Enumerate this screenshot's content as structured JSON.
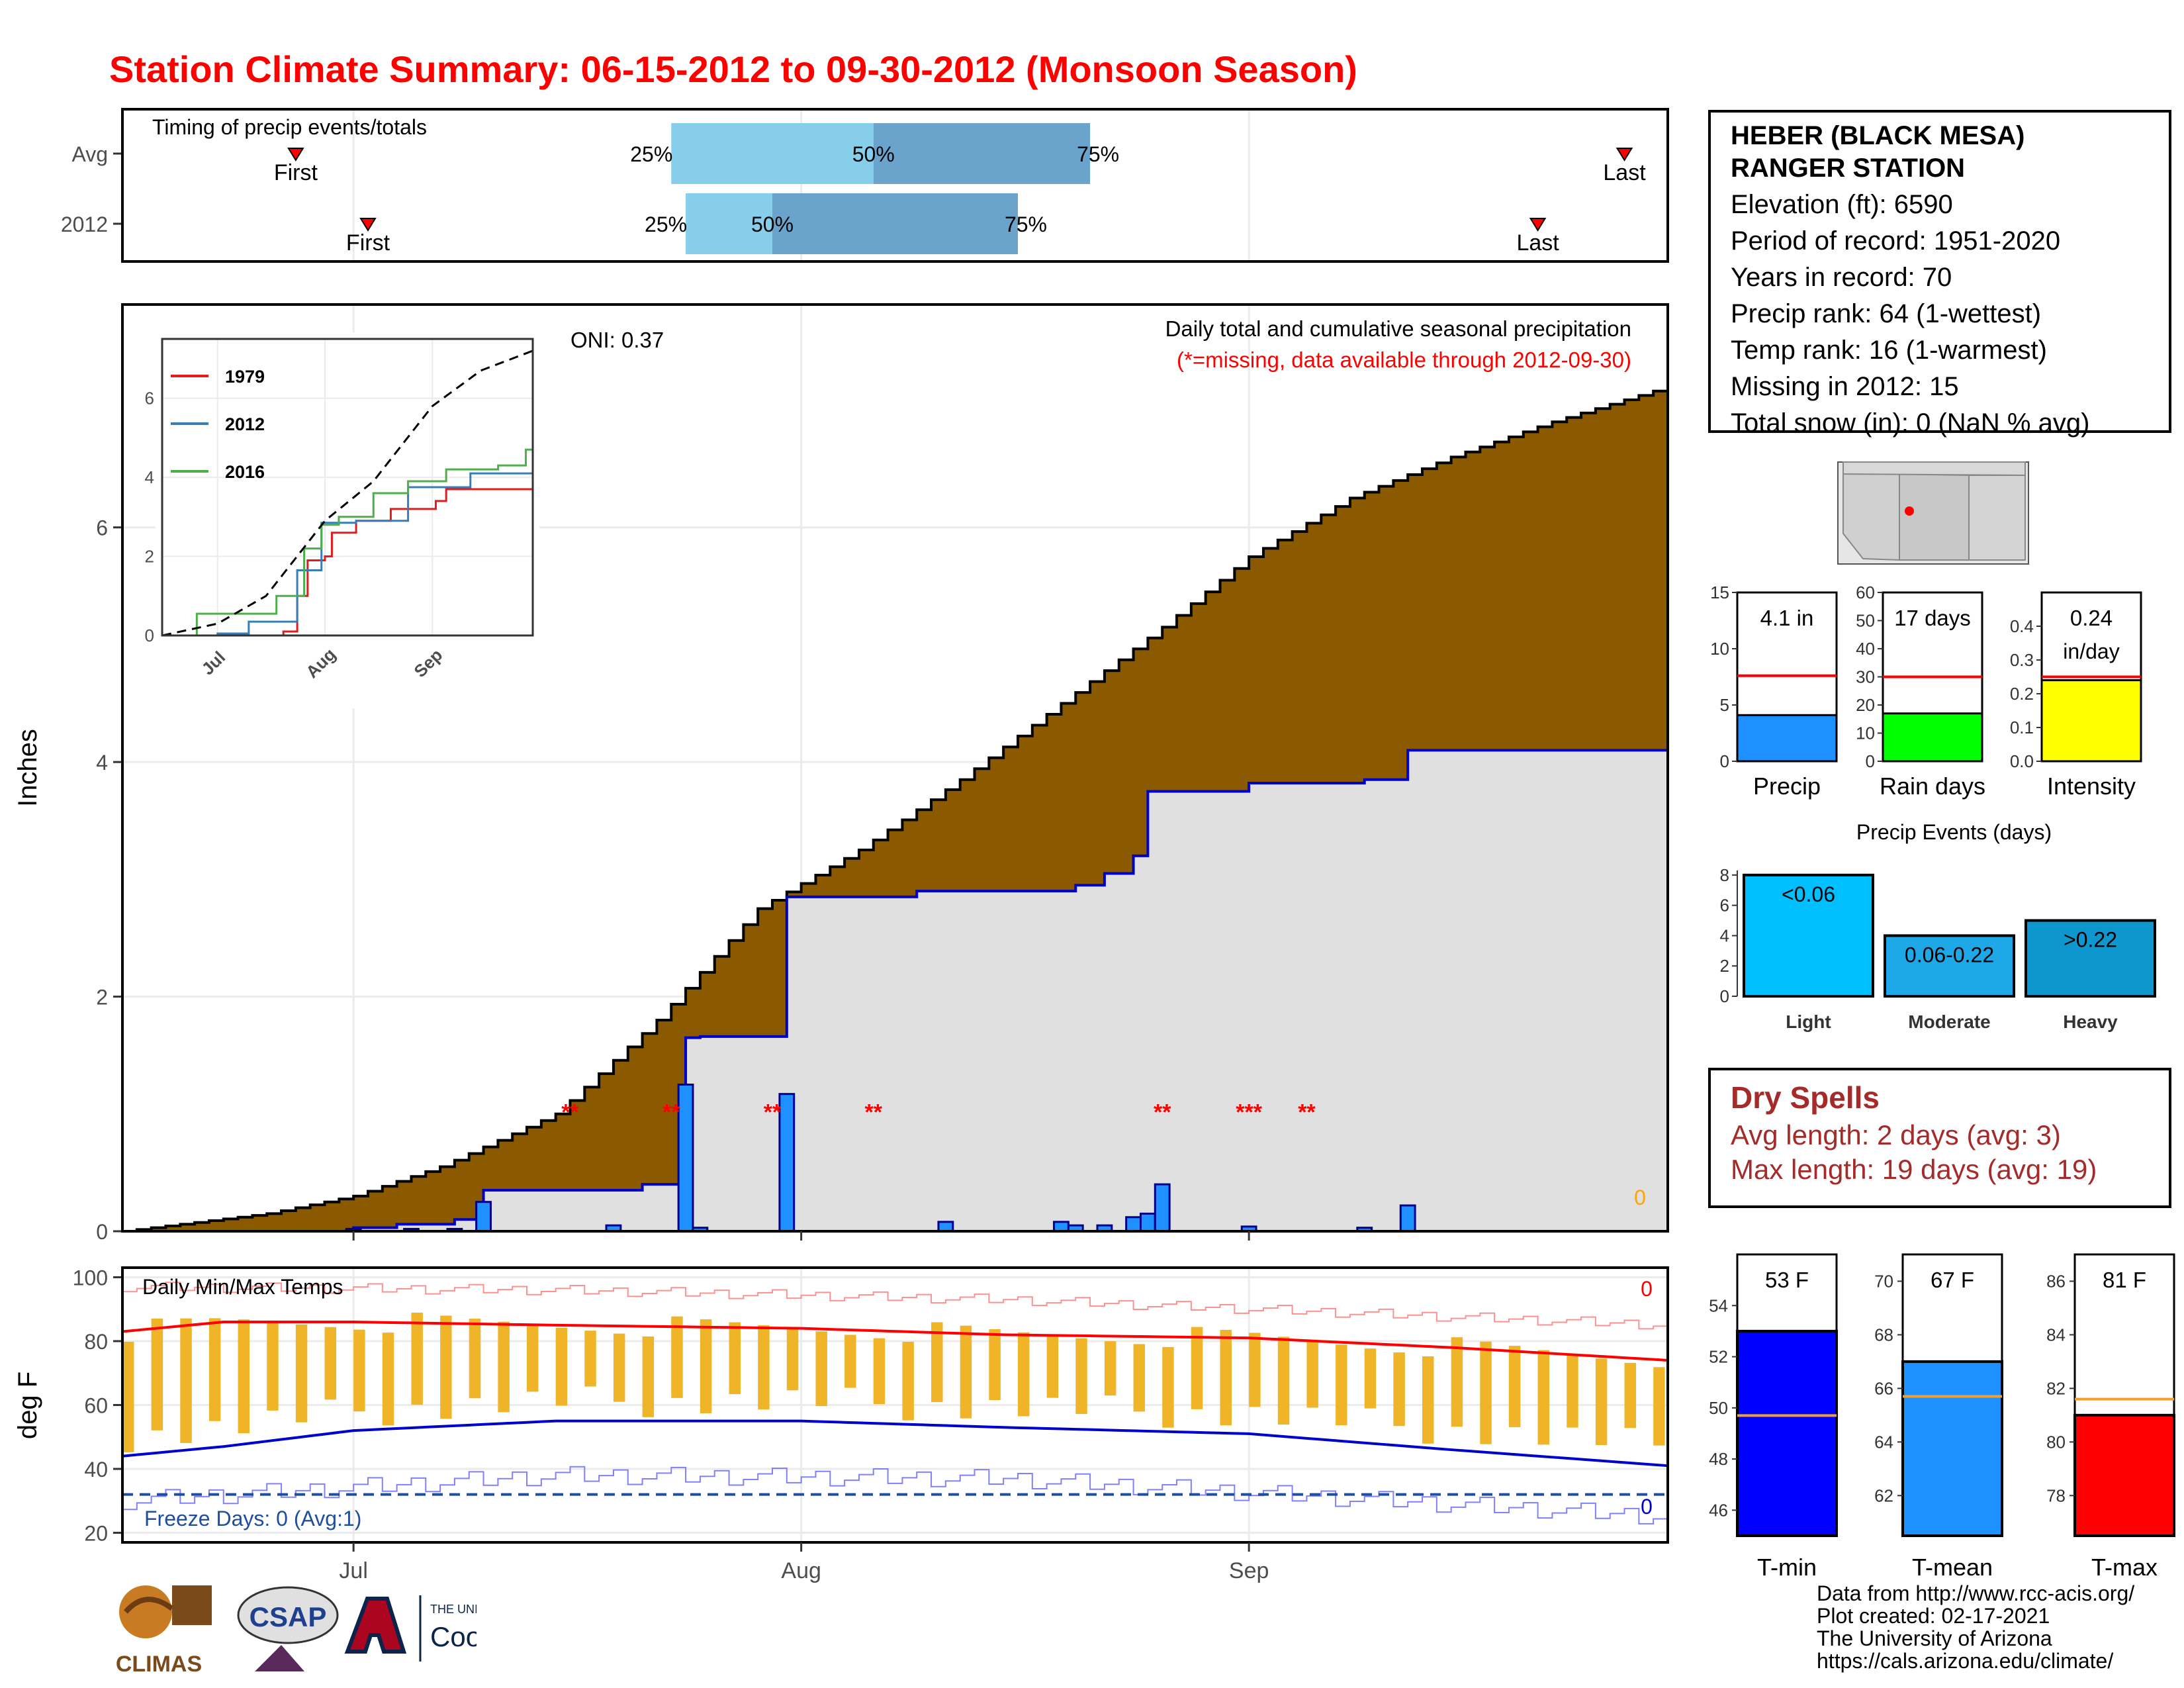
{
  "title": "Station Climate Summary: 06-15-2012 to 09-30-2012 (Monsoon Season)",
  "timing": {
    "title": "Timing of precip events/totals",
    "rows": [
      {
        "label": "Avg",
        "first": "2012-06-27",
        "p25": "2012-07-23",
        "p50": "2012-08-06",
        "p75": "2012-08-21",
        "last": "2012-09-27"
      },
      {
        "label": "2012",
        "first": "2012-07-02",
        "p25": "2012-07-24",
        "p50": "2012-07-30",
        "p75": "2012-08-16",
        "last": "2012-09-21"
      }
    ],
    "labels": {
      "first": "First",
      "last": "Last",
      "p25": "25%",
      "p50": "50%",
      "p75": "75%"
    },
    "colors": {
      "light": "#87ceeb",
      "dark": "#6aa4cc",
      "marker": "#ff0000"
    }
  },
  "main": {
    "ylabel": "Inches",
    "subtitle1": "Daily total and cumulative seasonal precipitation",
    "subtitle2": "(*=missing, data available through 2012-09-30)",
    "oni": "ONI: 0.37",
    "snow_count": "0",
    "missing_marker": "**",
    "missing_marker3": "***",
    "xticks": [
      "Jul",
      "Aug",
      "Sep"
    ],
    "colors": {
      "avg_fill": "#8b5a00",
      "obs_fill": "#e0e0e0",
      "obs_line": "#0000cd",
      "bar": "#1e90ff",
      "missing": "#ff0000",
      "snow": "#ffa500"
    }
  },
  "inset": {
    "legend": [
      "1979",
      "2012",
      "2016"
    ],
    "colors": [
      "#e41a1c",
      "#377eb8",
      "#4daf4a"
    ],
    "xticks": [
      "Jul",
      "Aug",
      "Sep"
    ],
    "yticks": [
      "0",
      "2",
      "4",
      "6"
    ]
  },
  "temps": {
    "title": "Daily Min/Max Temps",
    "ylabel": "deg F",
    "freeze": "Freeze Days: 0 (Avg:1)",
    "max_count": "0",
    "min_count": "0",
    "xticks": [
      "Jul",
      "Aug",
      "Sep"
    ],
    "yticks": [
      "20",
      "40",
      "60",
      "80",
      "100"
    ],
    "colors": {
      "bar": "#f0b429",
      "max_avg": "#ff0000",
      "min_avg": "#0000cd",
      "max_rec": "#ff9090",
      "min_rec": "#8080ff",
      "freeze": "#1f4e9e"
    }
  },
  "station": {
    "name1": "HEBER (BLACK MESA)",
    "name2": "RANGER STATION",
    "lines": [
      "Elevation (ft): 6590",
      "Period of record: 1951-2020",
      "Years in record: 70",
      "Precip rank: 64 (1-wettest)",
      "Temp rank: 16 (1-warmest)",
      "Missing in 2012: 15",
      "Total snow (in): 0 (NaN % avg)"
    ]
  },
  "summary_bars": [
    {
      "name": "Precip",
      "label": "4.1 in",
      "value": 4.1,
      "avg": 7.6,
      "ymax": 15,
      "ticks": [
        "0",
        "5",
        "10",
        "15"
      ],
      "color": "#1e90ff"
    },
    {
      "name": "Rain days",
      "label": "17 days",
      "value": 17,
      "avg": 30,
      "ymax": 60,
      "ticks": [
        "0",
        "10",
        "20",
        "30",
        "40",
        "50",
        "60"
      ],
      "color": "#00ff00"
    },
    {
      "name": "Intensity",
      "label": "0.24",
      "label2": "in/day",
      "value": 0.24,
      "avg": 0.25,
      "ymax": 0.5,
      "ticks": [
        "0.0",
        "0.1",
        "0.2",
        "0.3",
        "0.4"
      ],
      "color": "#ffff00"
    }
  ],
  "events": {
    "title": "Precip Events (days)",
    "categories": [
      "Light",
      "Moderate",
      "Heavy"
    ],
    "labels": [
      "<0.06",
      "0.06-0.22",
      ">0.22"
    ],
    "values": [
      8,
      4,
      5
    ],
    "ticks": [
      "0",
      "2",
      "4",
      "6",
      "8"
    ],
    "colors": [
      "#00bfff",
      "#1ea8e8",
      "#0e96cf"
    ]
  },
  "dry": {
    "title": "Dry Spells",
    "avg": "Avg length: 2 days (avg: 3)",
    "max": "Max length: 19 days (avg: 19)"
  },
  "temp_bars": [
    {
      "name": "T-min",
      "label": "53 F",
      "value": 53,
      "avg": 49.7,
      "ymin": 45,
      "ymax": 56,
      "ticks": [
        "46",
        "48",
        "50",
        "52",
        "54"
      ],
      "color": "#0000ff"
    },
    {
      "name": "T-mean",
      "label": "67 F",
      "value": 67,
      "avg": 65.7,
      "ymin": 60.5,
      "ymax": 71,
      "ticks": [
        "62",
        "64",
        "66",
        "68",
        "70"
      ],
      "color": "#1e90ff"
    },
    {
      "name": "T-max",
      "label": "81 F",
      "value": 81,
      "avg": 81.6,
      "ymin": 76.5,
      "ymax": 87,
      "ticks": [
        "78",
        "80",
        "82",
        "84",
        "86"
      ],
      "color": "#ff0000"
    }
  ],
  "credits": [
    "Data from http://www.rcc-acis.org/",
    "Plot created: 02-17-2021",
    "The University of Arizona",
    "https://cals.arizona.edu/climate/"
  ],
  "logos": {
    "climas": "CLIMAS",
    "csap": "CSAP",
    "ua_small": "THE UNIVERSITY OF ARIZONA",
    "ua_big": "Cooperative Extension"
  },
  "chart_data": [
    {
      "type": "area",
      "title": "Daily total and cumulative seasonal precipitation",
      "ylabel": "Inches",
      "ylim": [
        0,
        7.9
      ],
      "x_range": [
        "2012-06-15",
        "2012-09-30"
      ],
      "series": [
        {
          "x": [
            "2012-06-15",
            "2012-06-25",
            "2012-07-01",
            "2012-07-07",
            "2012-07-15",
            "2012-07-22",
            "2012-07-29",
            "2012-08-05",
            "2012-08-12",
            "2012-08-19",
            "2012-08-26",
            "2012-09-01",
            "2012-09-08",
            "2012-09-15",
            "2012-09-22",
            "2012-09-30"
          ],
          "y": [
            0,
            0.15,
            0.3,
            0.55,
            1.0,
            1.8,
            2.75,
            3.25,
            3.85,
            4.5,
            5.15,
            5.75,
            6.25,
            6.6,
            6.9,
            7.2
          ]
        },
        {
          "x": [
            "2012-06-15",
            "2012-07-01",
            "2012-07-04",
            "2012-07-08",
            "2012-07-10",
            "2012-07-21",
            "2012-07-24",
            "2012-07-25",
            "2012-07-31",
            "2012-08-09",
            "2012-08-20",
            "2012-08-22",
            "2012-08-24",
            "2012-08-25",
            "2012-09-01",
            "2012-09-09",
            "2012-09-12",
            "2012-09-30"
          ],
          "y": [
            0,
            0.03,
            0.06,
            0.1,
            0.35,
            0.4,
            1.65,
            1.66,
            2.85,
            2.9,
            2.95,
            3.05,
            3.2,
            3.75,
            3.82,
            3.85,
            4.1,
            4.1
          ]
        }
      ],
      "daily_bars": [
        {
          "x": "2012-07-01",
          "y": 0.02
        },
        {
          "x": "2012-07-05",
          "y": 0.02
        },
        {
          "x": "2012-07-08",
          "y": 0.02
        },
        {
          "x": "2012-07-10",
          "y": 0.25
        },
        {
          "x": "2012-07-19",
          "y": 0.05
        },
        {
          "x": "2012-07-24",
          "y": 1.25
        },
        {
          "x": "2012-07-25",
          "y": 0.03
        },
        {
          "x": "2012-07-31",
          "y": 1.17
        },
        {
          "x": "2012-08-11",
          "y": 0.08
        },
        {
          "x": "2012-08-19",
          "y": 0.08
        },
        {
          "x": "2012-08-20",
          "y": 0.05
        },
        {
          "x": "2012-08-22",
          "y": 0.05
        },
        {
          "x": "2012-08-24",
          "y": 0.12
        },
        {
          "x": "2012-08-25",
          "y": 0.15
        },
        {
          "x": "2012-08-26",
          "y": 0.4
        },
        {
          "x": "2012-09-01",
          "y": 0.04
        },
        {
          "x": "2012-09-09",
          "y": 0.03
        },
        {
          "x": "2012-09-12",
          "y": 0.22
        }
      ],
      "missing": [
        {
          "x": "2012-07-16",
          "text": "**"
        },
        {
          "x": "2012-07-23",
          "text": "**"
        },
        {
          "x": "2012-07-30",
          "text": "**"
        },
        {
          "x": "2012-08-06",
          "text": "**"
        },
        {
          "x": "2012-08-26",
          "text": "**"
        },
        {
          "x": "2012-09-01",
          "text": "***"
        },
        {
          "x": "2012-09-05",
          "text": "**"
        }
      ]
    },
    {
      "type": "line",
      "title": "",
      "ylim": [
        0,
        7.5
      ],
      "x_range": [
        "2012-06-15",
        "2012-09-30"
      ],
      "series": [
        {
          "name": "1979",
          "x": [
            "2012-06-15",
            "2012-07-01",
            "2012-07-20",
            "2012-07-24",
            "2012-07-27",
            "2012-08-01",
            "2012-08-03",
            "2012-08-10",
            "2012-08-20",
            "2012-08-31",
            "2012-09-02",
            "2012-09-05",
            "2012-09-30"
          ],
          "y": [
            0,
            0,
            0.1,
            1.0,
            1.9,
            2.0,
            2.6,
            2.9,
            3.2,
            3.2,
            3.4,
            3.7,
            3.7
          ]
        },
        {
          "name": "2012",
          "x": [
            "2012-06-15",
            "2012-07-01",
            "2012-07-10",
            "2012-07-24",
            "2012-07-31",
            "2012-08-10",
            "2012-08-25",
            "2012-09-12",
            "2012-09-30"
          ],
          "y": [
            0,
            0.05,
            0.35,
            1.65,
            2.85,
            2.9,
            3.75,
            4.1,
            4.1
          ]
        },
        {
          "name": "2016",
          "x": [
            "2012-06-15",
            "2012-06-25",
            "2012-07-05",
            "2012-07-18",
            "2012-07-26",
            "2012-07-31",
            "2012-08-05",
            "2012-08-15",
            "2012-08-25",
            "2012-09-05",
            "2012-09-20",
            "2012-09-28",
            "2012-09-30"
          ],
          "y": [
            0,
            0.55,
            0.55,
            1.0,
            2.2,
            2.8,
            3.0,
            3.6,
            3.9,
            4.2,
            4.3,
            4.7,
            5.5
          ]
        },
        {
          "name": "",
          "x": [
            "2012-06-15",
            "2012-07-01",
            "2012-07-15",
            "2012-08-01",
            "2012-08-15",
            "2012-09-01",
            "2012-09-15",
            "2012-09-30"
          ],
          "y": [
            0,
            0.3,
            1.0,
            2.9,
            3.9,
            5.8,
            6.7,
            7.2
          ]
        }
      ]
    },
    {
      "type": "bar",
      "title": "Daily Min/Max Temps",
      "ylabel": "deg F",
      "ylim": [
        17,
        103
      ],
      "x_range": [
        "2012-06-15",
        "2012-09-30"
      ],
      "series": [
        {
          "name": "Avg max",
          "x": [
            "2012-06-15",
            "2012-06-22",
            "2012-07-01",
            "2012-07-15",
            "2012-08-01",
            "2012-08-15",
            "2012-09-01",
            "2012-09-15",
            "2012-09-30"
          ],
          "y": [
            83,
            86,
            86,
            85,
            84,
            82,
            81,
            78,
            74
          ]
        },
        {
          "name": "Avg min",
          "x": [
            "2012-06-15",
            "2012-06-22",
            "2012-07-01",
            "2012-07-15",
            "2012-08-01",
            "2012-08-15",
            "2012-09-01",
            "2012-09-15",
            "2012-09-30"
          ],
          "y": [
            44,
            47,
            52,
            55,
            55,
            53,
            51,
            46,
            41
          ]
        },
        {
          "name": "Record high",
          "x": [
            "2012-06-15",
            "2012-07-15",
            "2012-08-15",
            "2012-09-30"
          ],
          "y": [
            97,
            96,
            93,
            85
          ]
        },
        {
          "name": "Record low",
          "x": [
            "2012-06-15",
            "2012-07-15",
            "2012-08-15",
            "2012-09-30"
          ],
          "y": [
            30,
            38,
            37,
            25
          ]
        },
        {
          "name": "Freeze",
          "x": [
            "2012-06-15",
            "2012-09-30"
          ],
          "y": [
            32,
            32
          ]
        }
      ]
    }
  ]
}
